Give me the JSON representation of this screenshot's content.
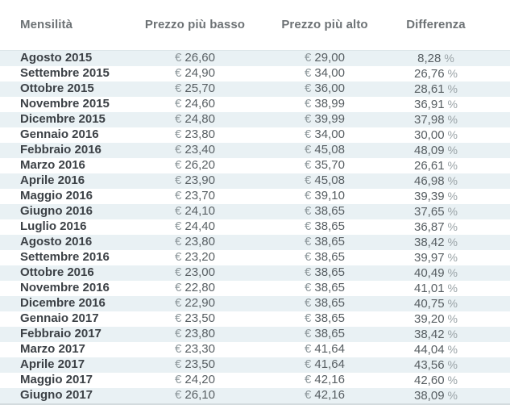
{
  "table": {
    "columns": [
      "Mensilità",
      "Prezzo più basso",
      "Prezzo più alto",
      "Differenza"
    ],
    "currency": "€",
    "percent": "%",
    "rows": [
      {
        "month": "Agosto 2015",
        "low": "26,60",
        "high": "29,00",
        "diff": "8,28"
      },
      {
        "month": "Settembre 2015",
        "low": "24,90",
        "high": "34,00",
        "diff": "26,76"
      },
      {
        "month": "Ottobre 2015",
        "low": "25,70",
        "high": "36,00",
        "diff": "28,61"
      },
      {
        "month": "Novembre 2015",
        "low": "24,60",
        "high": "38,99",
        "diff": "36,91"
      },
      {
        "month": "Dicembre 2015",
        "low": "24,80",
        "high": "39,99",
        "diff": "37,98"
      },
      {
        "month": "Gennaio 2016",
        "low": "23,80",
        "high": "34,00",
        "diff": "30,00"
      },
      {
        "month": "Febbraio 2016",
        "low": "23,40",
        "high": "45,08",
        "diff": "48,09"
      },
      {
        "month": "Marzo 2016",
        "low": "26,20",
        "high": "35,70",
        "diff": "26,61"
      },
      {
        "month": "Aprile 2016",
        "low": "23,90",
        "high": "45,08",
        "diff": "46,98"
      },
      {
        "month": "Maggio 2016",
        "low": "23,70",
        "high": "39,10",
        "diff": "39,39"
      },
      {
        "month": "Giugno 2016",
        "low": "24,10",
        "high": "38,65",
        "diff": "37,65"
      },
      {
        "month": "Luglio 2016",
        "low": "24,40",
        "high": "38,65",
        "diff": "36,87"
      },
      {
        "month": "Agosto 2016",
        "low": "23,80",
        "high": "38,65",
        "diff": "38,42"
      },
      {
        "month": "Settembre 2016",
        "low": "23,20",
        "high": "38,65",
        "diff": "39,97"
      },
      {
        "month": "Ottobre 2016",
        "low": "23,00",
        "high": "38,65",
        "diff": "40,49"
      },
      {
        "month": "Novembre 2016",
        "low": "22,80",
        "high": "38,65",
        "diff": "41,01"
      },
      {
        "month": "Dicembre 2016",
        "low": "22,90",
        "high": "38,65",
        "diff": "40,75"
      },
      {
        "month": "Gennaio 2017",
        "low": "23,50",
        "high": "38,65",
        "diff": "39,20"
      },
      {
        "month": "Febbraio 2017",
        "low": "23,80",
        "high": "38,65",
        "diff": "38,42"
      },
      {
        "month": "Marzo 2017",
        "low": "23,30",
        "high": "41,64",
        "diff": "44,04"
      },
      {
        "month": "Aprile 2017",
        "low": "23,50",
        "high": "41,64",
        "diff": "43,56"
      },
      {
        "month": "Maggio 2017",
        "low": "24,20",
        "high": "42,16",
        "diff": "42,60"
      },
      {
        "month": "Giugno 2017",
        "low": "26,10",
        "high": "42,16",
        "diff": "38,09"
      }
    ]
  },
  "colors": {
    "stripe": "#e9f1f4",
    "month_text": "#3c4146",
    "value_text": "#585f63",
    "header_text": "#6d7275",
    "muted_symbol": "#9aa3a7",
    "bottom_border": "#d3dbde"
  },
  "chart_data": {
    "type": "table",
    "title": "",
    "columns": [
      "Mensilità",
      "Prezzo più basso (€)",
      "Prezzo più alto (€)",
      "Differenza (%)"
    ],
    "categories": [
      "Agosto 2015",
      "Settembre 2015",
      "Ottobre 2015",
      "Novembre 2015",
      "Dicembre 2015",
      "Gennaio 2016",
      "Febbraio 2016",
      "Marzo 2016",
      "Aprile 2016",
      "Maggio 2016",
      "Giugno 2016",
      "Luglio 2016",
      "Agosto 2016",
      "Settembre 2016",
      "Ottobre 2016",
      "Novembre 2016",
      "Dicembre 2016",
      "Gennaio 2017",
      "Febbraio 2017",
      "Marzo 2017",
      "Aprile 2017",
      "Maggio 2017",
      "Giugno 2017"
    ],
    "series": [
      {
        "name": "Prezzo più basso",
        "values": [
          26.6,
          24.9,
          25.7,
          24.6,
          24.8,
          23.8,
          23.4,
          26.2,
          23.9,
          23.7,
          24.1,
          24.4,
          23.8,
          23.2,
          23.0,
          22.8,
          22.9,
          23.5,
          23.8,
          23.3,
          23.5,
          24.2,
          26.1
        ]
      },
      {
        "name": "Prezzo più alto",
        "values": [
          29.0,
          34.0,
          36.0,
          38.99,
          39.99,
          34.0,
          45.08,
          35.7,
          45.08,
          39.1,
          38.65,
          38.65,
          38.65,
          38.65,
          38.65,
          38.65,
          38.65,
          38.65,
          38.65,
          41.64,
          41.64,
          42.16,
          42.16
        ]
      },
      {
        "name": "Differenza %",
        "values": [
          8.28,
          26.76,
          28.61,
          36.91,
          37.98,
          30.0,
          48.09,
          26.61,
          46.98,
          39.39,
          37.65,
          36.87,
          38.42,
          39.97,
          40.49,
          41.01,
          40.75,
          39.2,
          38.42,
          44.04,
          43.56,
          42.6,
          38.09
        ]
      }
    ]
  }
}
